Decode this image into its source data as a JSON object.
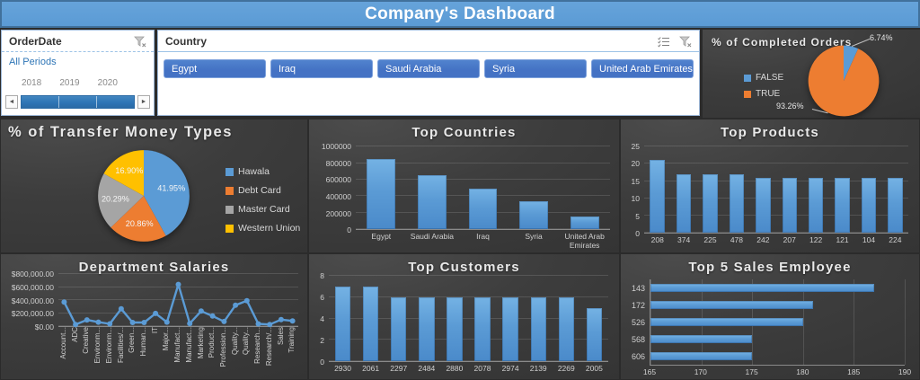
{
  "title": "Company's Dashboard",
  "slicers": {
    "order_date": {
      "title": "OrderDate",
      "selection_label": "All Periods",
      "years": [
        "2018",
        "2019",
        "2020"
      ],
      "icons": [
        "clear-filter-icon"
      ]
    },
    "country": {
      "title": "Country",
      "buttons": [
        "Egypt",
        "Iraq",
        "Saudi Arabia",
        "Syria",
        "United Arab Emirates"
      ],
      "icons": [
        "multi-select-icon",
        "clear-filter-icon"
      ]
    }
  },
  "colors": {
    "titlebar_blue": "#5B9BD5",
    "accent_blue": "#5B9BD5",
    "orange": "#ED7D31",
    "gray": "#A5A5A5",
    "yellow": "#FFC000",
    "slicer_button_blue": "#4472C4",
    "dark_background": "#3A3A3A"
  },
  "chart_data": [
    {
      "id": "completed_orders",
      "type": "pie",
      "title": "% of Completed Orders",
      "legend": [
        "FALSE",
        "TRUE"
      ],
      "values": [
        6.74,
        93.26
      ],
      "slice_labels": [
        "6.74%",
        "93.26%"
      ],
      "colors": [
        "#5B9BD5",
        "#ED7D31"
      ],
      "legend_position": "left",
      "labels_position": "outside"
    },
    {
      "id": "transfer_money_types",
      "type": "pie",
      "title": "% of Transfer Money Types",
      "legend": [
        "Hawala",
        "Debt Card",
        "Master Card",
        "Western Union"
      ],
      "values": [
        41.95,
        20.86,
        20.29,
        16.9
      ],
      "slice_labels": [
        "41.95%",
        "20.86%",
        "20.29%",
        "16.90%"
      ],
      "colors": [
        "#5B9BD5",
        "#ED7D31",
        "#A5A5A5",
        "#FFC000"
      ],
      "legend_position": "right",
      "labels_position": "inside"
    },
    {
      "id": "top_countries",
      "type": "bar",
      "title": "Top Countries",
      "categories": [
        "Egypt",
        "Saudi Arabia",
        "Iraq",
        "Syria",
        "United Arab Emirates"
      ],
      "values": [
        850000,
        655000,
        490000,
        345000,
        160000
      ],
      "ylim": [
        0,
        1000000
      ],
      "yticks": [
        0,
        200000,
        400000,
        600000,
        800000,
        1000000
      ],
      "ytick_labels": [
        "0",
        "200000",
        "400000",
        "600000",
        "800000",
        "1000000"
      ],
      "color": "#5B9BD5",
      "grid": true,
      "legend_position": "none"
    },
    {
      "id": "top_products",
      "type": "bar",
      "title": "Top Products",
      "categories": [
        "208",
        "374",
        "225",
        "478",
        "242",
        "207",
        "122",
        "121",
        "104",
        "224"
      ],
      "values": [
        21,
        17,
        17,
        17,
        16,
        16,
        16,
        16,
        16,
        16
      ],
      "ylim": [
        0,
        25
      ],
      "yticks": [
        0,
        5,
        10,
        15,
        20,
        25
      ],
      "ytick_labels": [
        "0",
        "5",
        "10",
        "15",
        "20",
        "25"
      ],
      "color": "#5B9BD5",
      "grid": true,
      "legend_position": "none"
    },
    {
      "id": "department_salaries",
      "type": "line",
      "title": "Department Salaries",
      "categories": [
        "Account...",
        "ADC",
        "Creative",
        "Environm...",
        "Environm...",
        "Facilities/...",
        "Green...",
        "Human...",
        "IT",
        "Major...",
        "Manufact...",
        "Manufact...",
        "Marketing",
        "Product...",
        "Profession...",
        "Quality...",
        "Quality...",
        "Research...",
        "Research/...",
        "Sales",
        "Training"
      ],
      "values": [
        370000,
        25000,
        95000,
        60000,
        35000,
        265000,
        55000,
        55000,
        195000,
        60000,
        640000,
        40000,
        230000,
        155000,
        70000,
        320000,
        390000,
        35000,
        25000,
        100000,
        80000
      ],
      "ylim": [
        0,
        800000
      ],
      "yticks": [
        0,
        200000,
        400000,
        600000,
        800000
      ],
      "ytick_labels": [
        "$0.00",
        "$200,000.00",
        "$400,000.00",
        "$600,000.00",
        "$800,000.00"
      ],
      "color": "#5B9BD5",
      "grid": true,
      "legend_position": "none"
    },
    {
      "id": "top_customers",
      "type": "bar",
      "title": "Top Customers",
      "categories": [
        "2930",
        "2061",
        "2297",
        "2484",
        "2880",
        "2078",
        "2974",
        "2139",
        "2269",
        "2005"
      ],
      "values": [
        7,
        7,
        6,
        6,
        6,
        6,
        6,
        6,
        6,
        5
      ],
      "ylim": [
        0,
        8
      ],
      "yticks": [
        0,
        2,
        4,
        6,
        8
      ],
      "ytick_labels": [
        "0",
        "2",
        "4",
        "6",
        "8"
      ],
      "color": "#5B9BD5",
      "grid": true,
      "legend_position": "none"
    },
    {
      "id": "top_sales_employees",
      "type": "hbar",
      "title": "Top 5 Sales Employee",
      "categories": [
        "143",
        "172",
        "526",
        "568",
        "606"
      ],
      "values": [
        187,
        181,
        180,
        175,
        175
      ],
      "xlim": [
        165,
        190
      ],
      "xticks": [
        165,
        170,
        175,
        180,
        185,
        190
      ],
      "xtick_labels": [
        "165",
        "170",
        "175",
        "180",
        "185",
        "190"
      ],
      "color": "#5B9BD5",
      "grid": true,
      "legend_position": "none"
    }
  ]
}
